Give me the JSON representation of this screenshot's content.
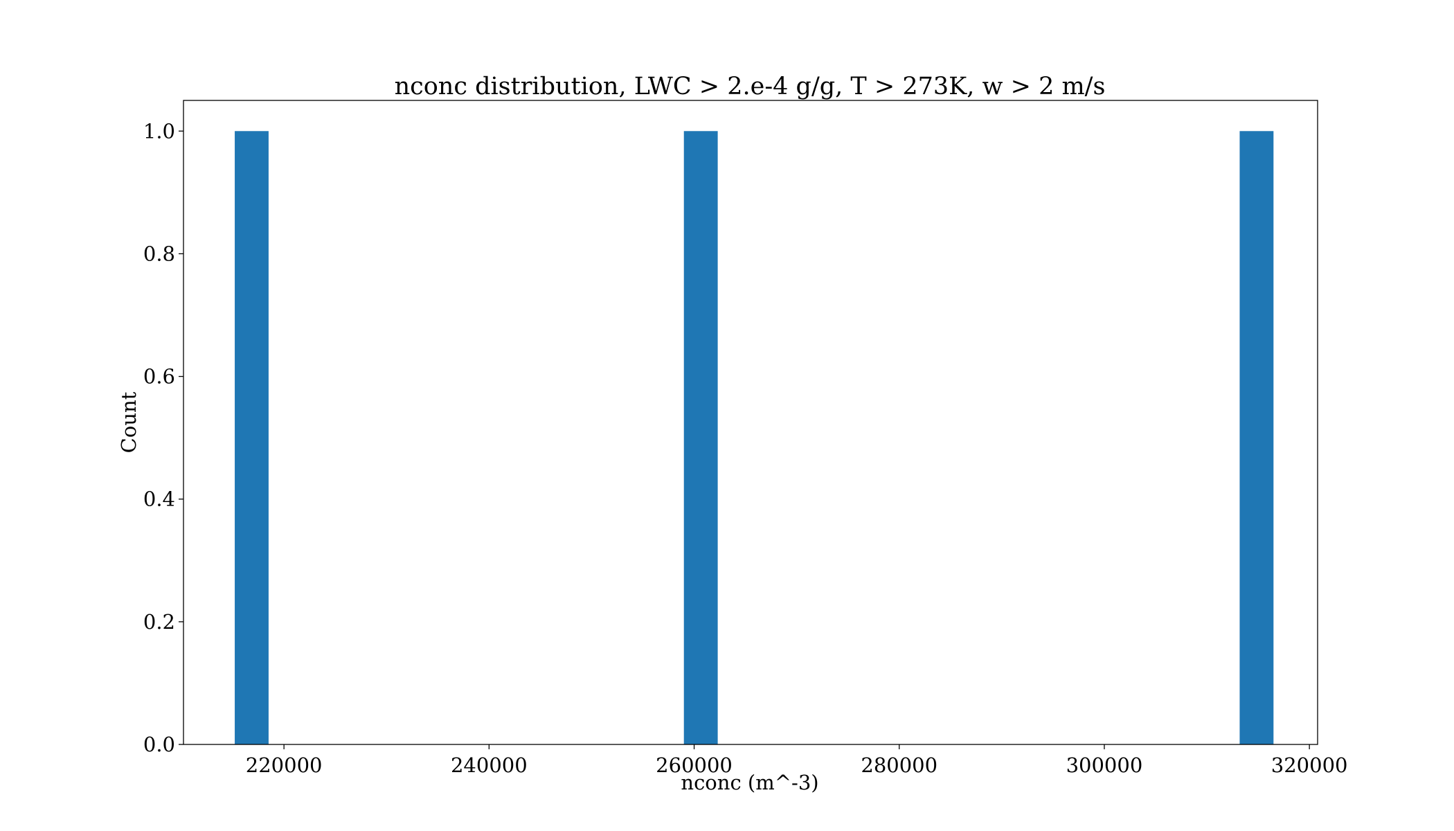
{
  "chart_data": {
    "type": "bar",
    "title": "nconc distribution, LWC > 2.e-4 g/g, T > 273K, w > 2 m/s",
    "xlabel": "nconc (m^-3)",
    "ylabel": "Count",
    "xlim": [
      210200,
      320800
    ],
    "ylim": [
      0,
      1.05
    ],
    "x_ticks": [
      220000,
      240000,
      260000,
      280000,
      300000,
      320000
    ],
    "y_ticks": [
      0.0,
      0.2,
      0.4,
      0.6,
      0.8,
      1.0
    ],
    "x_tick_labels": [
      "220000",
      "240000",
      "260000",
      "280000",
      "300000",
      "320000"
    ],
    "y_tick_labels": [
      "0.0",
      "0.2",
      "0.4",
      "0.6",
      "0.8",
      "1.0"
    ],
    "bars": [
      {
        "x0": 215200,
        "x1": 218500,
        "count": 1
      },
      {
        "x0": 259000,
        "x1": 262300,
        "count": 1
      },
      {
        "x0": 313200,
        "x1": 316500,
        "count": 1
      }
    ],
    "bar_color": "#1f77b4",
    "grid": false
  }
}
